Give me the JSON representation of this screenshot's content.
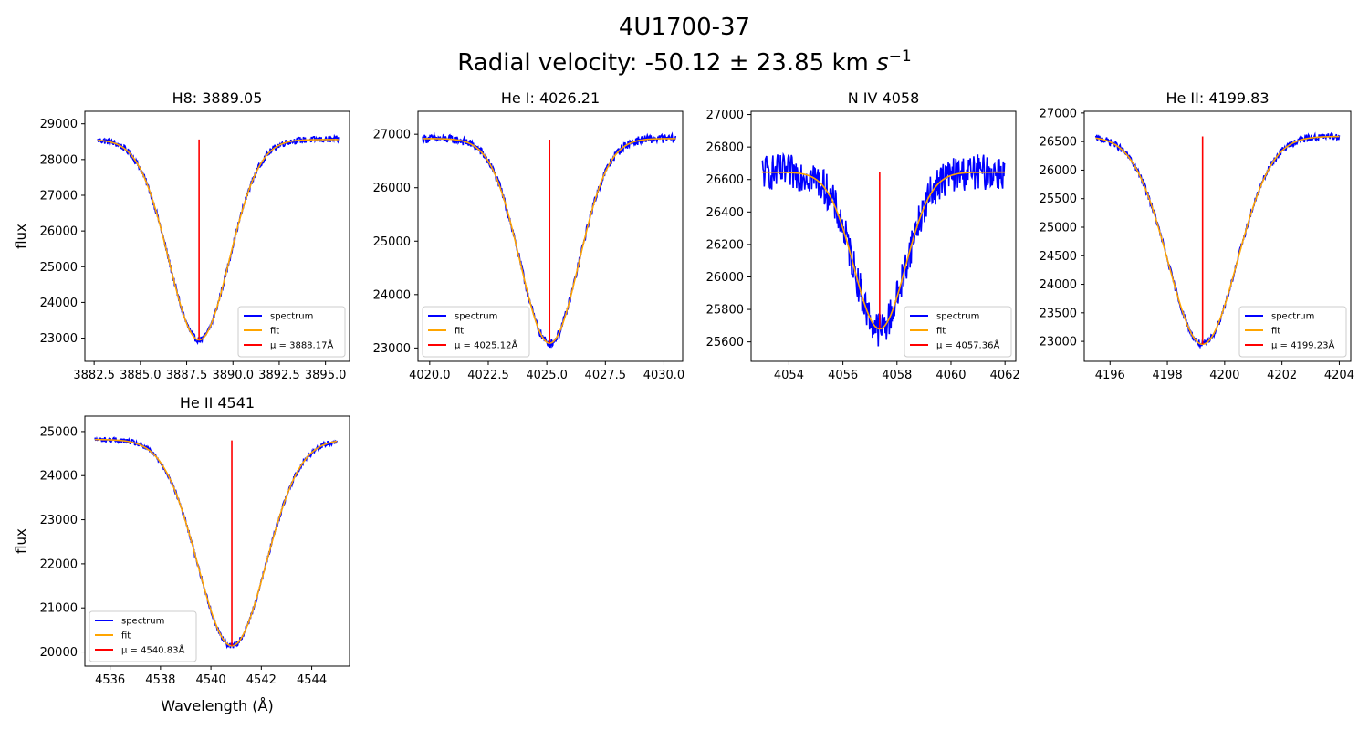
{
  "figure": {
    "title_line1": "4U1700-37",
    "title_line2_prefix": "Radial velocity: -50.12 ± 23.85 km ",
    "title_line2_unit_base": "s",
    "title_line2_unit_exp": "−1"
  },
  "legend_labels": {
    "spectrum": "spectrum",
    "fit": "fit"
  },
  "colors": {
    "spectrum": "#0000ff",
    "fit": "#ffa500",
    "mu_line": "#ff0000",
    "axes": "#000000",
    "legend_border": "#cccccc"
  },
  "chart_data": [
    {
      "type": "line",
      "title": "H8: 3889.05",
      "ylabel": "flux",
      "xlabel": "",
      "xlim": [
        3882.0,
        3896.3
      ],
      "ylim": [
        22350,
        29350
      ],
      "xticks": [
        "3882.5",
        "3885.0",
        "3887.5",
        "3890.0",
        "3892.5",
        "3895.0"
      ],
      "yticks": [
        "23000",
        "24000",
        "25000",
        "26000",
        "27000",
        "28000",
        "29000"
      ],
      "legend_loc": "lower-right",
      "mu_label": "μ = 3888.17Å",
      "mu": 3888.17,
      "mu_line_top": 28560,
      "fit": {
        "continuum": 28560,
        "depth": 5610,
        "sigma": 1.62,
        "slope": 0
      },
      "spectrum": {
        "x_start": 3882.7,
        "x_end": 3895.7,
        "noise": 90
      }
    },
    {
      "type": "line",
      "title": "He I: 4026.21",
      "ylabel": "",
      "xlabel": "",
      "xlim": [
        4019.5,
        4030.8
      ],
      "ylim": [
        22750,
        27430
      ],
      "xticks": [
        "4020.0",
        "4022.5",
        "4025.0",
        "4027.5",
        "4030.0"
      ],
      "yticks": [
        "23000",
        "24000",
        "25000",
        "26000",
        "27000"
      ],
      "legend_loc": "lower-left",
      "mu_label": "μ = 4025.12Å",
      "mu": 4025.12,
      "mu_line_top": 26900,
      "fit": {
        "continuum": 26920,
        "depth": 3830,
        "sigma": 1.25,
        "slope": 0
      },
      "spectrum": {
        "x_start": 4019.7,
        "x_end": 4030.5,
        "noise": 80
      }
    },
    {
      "type": "line",
      "title": "N IV 4058",
      "ylabel": "",
      "xlabel": "",
      "xlim": [
        4052.6,
        4062.4
      ],
      "ylim": [
        25480,
        27020
      ],
      "xticks": [
        "4054",
        "4056",
        "4058",
        "4060",
        "4062"
      ],
      "yticks": [
        "25600",
        "25800",
        "26000",
        "26200",
        "26400",
        "26600",
        "26800",
        "27000"
      ],
      "legend_loc": "lower-right",
      "mu_label": "μ = 4057.36Å",
      "mu": 4057.36,
      "mu_line_top": 26645,
      "fit": {
        "continuum": 26645,
        "depth": 965,
        "sigma": 0.95,
        "slope": 0
      },
      "spectrum": {
        "x_start": 4053.0,
        "x_end": 4062.0,
        "noise": 110
      }
    },
    {
      "type": "line",
      "title": "He II: 4199.83",
      "ylabel": "",
      "xlabel": "",
      "xlim": [
        4195.1,
        4204.4
      ],
      "ylim": [
        22650,
        27030
      ],
      "xticks": [
        "4196",
        "4198",
        "4200",
        "4202",
        "4204"
      ],
      "yticks": [
        "23000",
        "23500",
        "24000",
        "24500",
        "25000",
        "25500",
        "26000",
        "26500",
        "27000"
      ],
      "legend_loc": "lower-right",
      "mu_label": "μ = 4199.23Å",
      "mu": 4199.23,
      "mu_line_top": 26590,
      "fit": {
        "continuum": 26590,
        "depth": 3640,
        "sigma": 1.2,
        "slope": 0
      },
      "spectrum": {
        "x_start": 4195.5,
        "x_end": 4204.0,
        "noise": 60
      }
    },
    {
      "type": "line",
      "title": "He II 4541",
      "ylabel": "flux",
      "xlabel": "Wavelength (Å)",
      "xlim": [
        4535.0,
        4545.5
      ],
      "ylim": [
        19680,
        25350
      ],
      "xticks": [
        "4536",
        "4538",
        "4540",
        "4542",
        "4544"
      ],
      "yticks": [
        "20000",
        "21000",
        "22000",
        "23000",
        "24000",
        "25000"
      ],
      "legend_loc": "lower-left",
      "mu_label": "μ = 4540.83Å",
      "mu": 4540.83,
      "mu_line_top": 24800,
      "fit": {
        "continuum": 24820,
        "depth": 4680,
        "sigma": 1.35,
        "slope": 0
      },
      "spectrum": {
        "x_start": 4535.4,
        "x_end": 4545.0,
        "noise": 60
      }
    }
  ]
}
